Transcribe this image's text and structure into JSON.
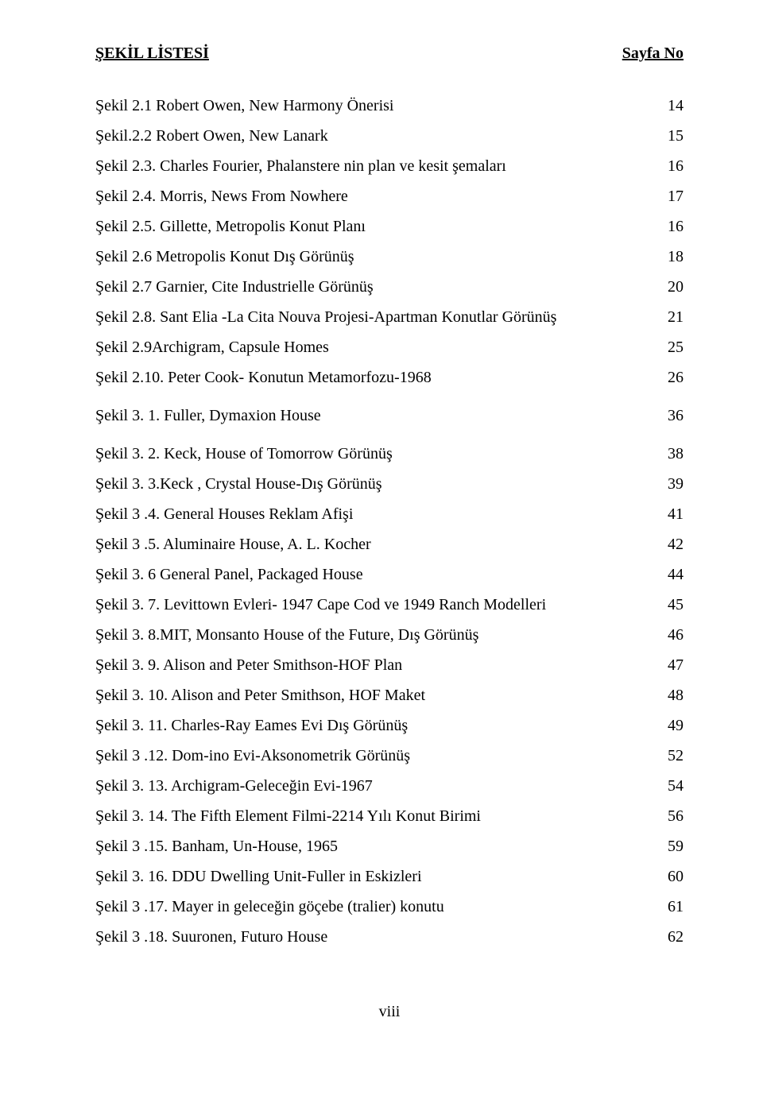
{
  "header": {
    "left": "ŞEKİL LİSTESİ",
    "right": "Sayfa No"
  },
  "groups": [
    {
      "entries": [
        {
          "label": "Şekil 2.1 Robert Owen, New Harmony Önerisi",
          "page": "14"
        },
        {
          "label": "Şekil.2.2 Robert Owen, New Lanark",
          "page": "15"
        },
        {
          "label": "Şekil 2.3. Charles Fourier, Phalanstere nin plan ve kesit şemaları",
          "page": "16"
        },
        {
          "label": "Şekil 2.4. Morris, News From Nowhere",
          "page": "17"
        },
        {
          "label": "Şekil 2.5. Gillette, Metropolis Konut Planı",
          "page": "16"
        },
        {
          "label": "Şekil 2.6 Metropolis Konut Dış Görünüş",
          "page": "18"
        },
        {
          "label": "Şekil 2.7 Garnier, Cite Industrielle Görünüş",
          "page": "20"
        },
        {
          "label": "Şekil 2.8. Sant Elia -La Cita Nouva Projesi-Apartman Konutlar Görünüş",
          "page": "21"
        },
        {
          "label": "Şekil 2.9Archigram, Capsule Homes",
          "page": "25"
        },
        {
          "label": "Şekil 2.10. Peter Cook- Konutun Metamorfozu-1968",
          "page": "26"
        }
      ]
    },
    {
      "entries": [
        {
          "label": "Şekil 3. 1. Fuller, Dymaxion House",
          "page": "36"
        }
      ]
    },
    {
      "entries": [
        {
          "label": "Şekil 3. 2. Keck, House of Tomorrow Görünüş",
          "page": "38"
        },
        {
          "label": "Şekil 3. 3.Keck , Crystal House-Dış Görünüş",
          "page": "39"
        },
        {
          "label": "Şekil 3 .4. General Houses Reklam Afişi",
          "page": "41"
        },
        {
          "label": "Şekil 3 .5. Aluminaire House, A. L. Kocher",
          "page": "42"
        },
        {
          "label": "Şekil 3. 6 General Panel, Packaged House",
          "page": "44"
        },
        {
          "label": "Şekil 3. 7. Levittown Evleri- 1947 Cape Cod ve 1949 Ranch Modelleri",
          "page": "45"
        },
        {
          "label": "Şekil 3. 8.MIT, Monsanto House of the Future, Dış Görünüş",
          "page": "46"
        },
        {
          "label": "Şekil 3. 9. Alison and Peter Smithson-HOF Plan",
          "page": "47"
        },
        {
          "label": "Şekil 3. 10. Alison and Peter Smithson, HOF Maket",
          "page": "48"
        },
        {
          "label": "Şekil 3. 11. Charles-Ray Eames Evi Dış Görünüş",
          "page": "49"
        },
        {
          "label": "Şekil 3 .12. Dom-ino Evi-Aksonometrik Görünüş",
          "page": "52"
        },
        {
          "label": "Şekil 3. 13. Archigram-Geleceğin Evi-1967",
          "page": "54"
        },
        {
          "label": "Şekil 3. 14. The Fifth Element Filmi-2214 Yılı Konut Birimi",
          "page": "56"
        },
        {
          "label": "Şekil 3 .15. Banham, Un-House, 1965",
          "page": "59"
        },
        {
          "label": "Şekil 3. 16. DDU Dwelling Unit-Fuller in Eskizleri",
          "page": "60"
        },
        {
          "label": "Şekil 3 .17. Mayer in geleceğin göçebe (tralier) konutu",
          "page": "61"
        },
        {
          "label": "Şekil 3 .18. Suuronen, Futuro House",
          "page": "62"
        }
      ]
    }
  ],
  "footer": "viii"
}
